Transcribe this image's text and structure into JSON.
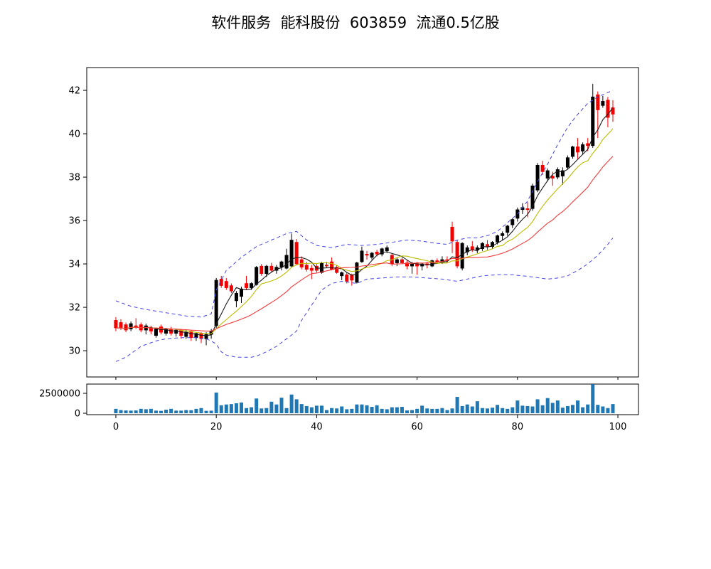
{
  "header": {
    "title": "软件服务  能科股份  603859  流通0.5亿股"
  },
  "chart_data": {
    "type": "candlestick",
    "title": "软件服务  能科股份  603859  流通0.5亿股",
    "panels": [
      "price",
      "volume"
    ],
    "price_axis": {
      "ticks": [
        30,
        32,
        34,
        36,
        38,
        40,
        42
      ],
      "ylim": [
        28.79,
        43.05
      ]
    },
    "x_axis": {
      "ticks": [
        0,
        20,
        40,
        60,
        80,
        100
      ],
      "xlim": [
        -5.8,
        104.1
      ]
    },
    "volume_axis": {
      "tick_values": [
        2500000,
        0
      ],
      "tick_labels": [
        "2500000",
        "0"
      ],
      "ylim": [
        -178000,
        3661000
      ]
    },
    "colors": {
      "up": "#000000",
      "down": "#f20000",
      "volume": "#1f77b4",
      "spine": "#000000",
      "ma_fast": "#1a1a1a",
      "ma_mid": "#bdbd00",
      "ma_slow": "#f23b3b",
      "bollinger": "#4545e6"
    },
    "candles": [
      [
        31.4,
        31.55,
        30.9,
        31.05
      ],
      [
        31.3,
        31.45,
        30.95,
        31.05
      ],
      [
        31.2,
        31.3,
        30.85,
        30.95
      ],
      [
        31.0,
        31.35,
        30.9,
        31.25
      ],
      [
        31.15,
        31.5,
        31.0,
        31.1
      ],
      [
        31.2,
        31.3,
        30.85,
        30.95
      ],
      [
        30.95,
        31.25,
        30.75,
        31.15
      ],
      [
        31.05,
        31.15,
        30.75,
        30.9
      ],
      [
        30.7,
        31.05,
        30.6,
        31.0
      ],
      [
        31.1,
        31.2,
        30.75,
        30.85
      ],
      [
        30.8,
        31.05,
        30.7,
        31.0
      ],
      [
        31.0,
        31.1,
        30.7,
        30.8
      ],
      [
        30.8,
        31.0,
        30.65,
        30.95
      ],
      [
        30.95,
        31.0,
        30.55,
        30.7
      ],
      [
        30.65,
        30.95,
        30.55,
        30.85
      ],
      [
        30.9,
        30.95,
        30.45,
        30.6
      ],
      [
        30.6,
        30.85,
        30.45,
        30.8
      ],
      [
        30.8,
        30.85,
        30.35,
        30.55
      ],
      [
        30.55,
        30.85,
        30.25,
        30.75
      ],
      [
        30.75,
        31.0,
        30.55,
        30.9
      ],
      [
        31.15,
        33.35,
        31.05,
        33.25
      ],
      [
        33.3,
        33.45,
        32.9,
        33.0
      ],
      [
        33.2,
        33.35,
        32.8,
        32.9
      ],
      [
        33.0,
        33.1,
        32.65,
        32.75
      ],
      [
        32.3,
        32.75,
        32.0,
        32.65
      ],
      [
        32.5,
        32.95,
        32.2,
        32.85
      ],
      [
        33.1,
        33.45,
        32.8,
        32.9
      ],
      [
        32.9,
        33.15,
        32.8,
        33.1
      ],
      [
        33.05,
        33.9,
        33.0,
        33.85
      ],
      [
        33.9,
        34.0,
        33.45,
        33.55
      ],
      [
        33.55,
        33.95,
        33.4,
        33.9
      ],
      [
        33.9,
        34.05,
        33.6,
        33.7
      ],
      [
        33.7,
        33.95,
        33.55,
        33.85
      ],
      [
        33.85,
        34.15,
        33.7,
        34.1
      ],
      [
        33.8,
        34.7,
        33.75,
        34.4
      ],
      [
        33.9,
        35.4,
        33.85,
        35.1
      ],
      [
        35.0,
        35.15,
        33.95,
        34.0
      ],
      [
        34.2,
        34.35,
        33.75,
        33.85
      ],
      [
        33.95,
        34.1,
        33.65,
        33.75
      ],
      [
        33.8,
        33.95,
        33.3,
        33.7
      ],
      [
        33.9,
        34.0,
        33.6,
        33.7
      ],
      [
        33.6,
        34.1,
        33.55,
        34.05
      ],
      [
        33.95,
        34.1,
        33.8,
        33.9
      ],
      [
        34.1,
        34.3,
        33.7,
        33.75
      ],
      [
        33.85,
        33.95,
        33.55,
        33.6
      ],
      [
        33.45,
        33.65,
        33.25,
        33.6
      ],
      [
        33.5,
        33.6,
        33.1,
        33.2
      ],
      [
        33.5,
        33.55,
        33.0,
        33.25
      ],
      [
        33.15,
        34.1,
        33.1,
        34.05
      ],
      [
        34.1,
        34.8,
        34.05,
        34.6
      ],
      [
        34.45,
        34.6,
        34.2,
        34.4
      ],
      [
        34.3,
        34.55,
        34.2,
        34.5
      ],
      [
        34.55,
        34.65,
        34.35,
        34.45
      ],
      [
        34.45,
        34.75,
        34.35,
        34.7
      ],
      [
        34.6,
        34.85,
        34.5,
        34.75
      ],
      [
        34.4,
        34.5,
        33.9,
        34.0
      ],
      [
        34.05,
        34.3,
        33.9,
        34.2
      ],
      [
        34.2,
        34.3,
        34.0,
        34.05
      ],
      [
        34.05,
        34.15,
        33.75,
        33.9
      ],
      [
        33.9,
        34.1,
        33.55,
        34.0
      ],
      [
        34.0,
        34.1,
        33.5,
        33.9
      ],
      [
        33.9,
        34.05,
        33.7,
        34.0
      ],
      [
        34.0,
        34.1,
        33.8,
        33.95
      ],
      [
        33.9,
        34.2,
        33.85,
        34.15
      ],
      [
        34.15,
        34.25,
        34.0,
        34.1
      ],
      [
        34.1,
        34.35,
        34.0,
        34.2
      ],
      [
        34.2,
        34.35,
        34.05,
        34.15
      ],
      [
        35.7,
        35.95,
        34.5,
        35.05
      ],
      [
        35.0,
        35.1,
        33.8,
        33.9
      ],
      [
        33.8,
        35.0,
        33.7,
        34.95
      ],
      [
        34.55,
        34.85,
        34.4,
        34.75
      ],
      [
        34.8,
        35.05,
        34.55,
        34.65
      ],
      [
        34.65,
        34.85,
        34.5,
        34.75
      ],
      [
        34.7,
        35.0,
        34.6,
        34.95
      ],
      [
        34.9,
        35.1,
        34.65,
        34.8
      ],
      [
        34.8,
        35.05,
        34.7,
        35.0
      ],
      [
        35.0,
        35.35,
        34.9,
        35.3
      ],
      [
        35.3,
        35.5,
        35.1,
        35.4
      ],
      [
        35.45,
        35.8,
        35.3,
        35.75
      ],
      [
        35.8,
        36.1,
        35.65,
        36.05
      ],
      [
        36.1,
        36.6,
        35.95,
        36.5
      ],
      [
        36.5,
        36.8,
        36.3,
        36.6
      ],
      [
        36.55,
        36.85,
        36.15,
        36.5
      ],
      [
        36.55,
        37.7,
        36.45,
        37.6
      ],
      [
        37.4,
        38.65,
        37.3,
        38.55
      ],
      [
        38.55,
        38.75,
        38.1,
        38.25
      ],
      [
        37.95,
        38.4,
        37.8,
        38.3
      ],
      [
        38.05,
        38.25,
        37.6,
        37.95
      ],
      [
        38.0,
        38.45,
        37.9,
        38.35
      ],
      [
        38.05,
        38.45,
        37.65,
        38.3
      ],
      [
        38.45,
        39.0,
        38.35,
        38.9
      ],
      [
        38.95,
        39.45,
        38.85,
        39.4
      ],
      [
        39.4,
        39.8,
        38.85,
        39.15
      ],
      [
        39.2,
        39.6,
        39.05,
        39.5
      ],
      [
        39.55,
        39.8,
        39.2,
        39.45
      ],
      [
        39.45,
        42.3,
        39.35,
        41.7
      ],
      [
        41.8,
        41.95,
        39.8,
        41.1
      ],
      [
        41.3,
        41.75,
        41.2,
        41.5
      ],
      [
        41.55,
        41.7,
        40.3,
        40.75
      ],
      [
        41.2,
        41.55,
        40.55,
        40.9
      ]
    ],
    "volumes": [
      550000,
      400000,
      350000,
      330000,
      350000,
      550000,
      500000,
      550000,
      330000,
      300000,
      450000,
      550000,
      330000,
      330000,
      400000,
      380000,
      550000,
      650000,
      300000,
      320000,
      2600000,
      1000000,
      1100000,
      1150000,
      1250000,
      1350000,
      650000,
      750000,
      1850000,
      600000,
      650000,
      1450000,
      1100000,
      1950000,
      650000,
      2350000,
      1750000,
      1150000,
      900000,
      750000,
      950000,
      950000,
      400000,
      650000,
      600000,
      850000,
      500000,
      550000,
      1100000,
      1100000,
      1000000,
      800000,
      1000000,
      550000,
      500000,
      750000,
      750000,
      800000,
      350000,
      400000,
      550000,
      950000,
      600000,
      550000,
      550000,
      650000,
      400000,
      600000,
      2050000,
      900000,
      1100000,
      850000,
      1500000,
      650000,
      600000,
      700000,
      1050000,
      650000,
      550000,
      750000,
      1600000,
      950000,
      900000,
      850000,
      1750000,
      1000000,
      1900000,
      1300000,
      1600000,
      700000,
      900000,
      1050000,
      1600000,
      750000,
      1100000,
      3650000,
      1050000,
      850000,
      650000,
      1150000
    ],
    "overlays": {
      "moving_averages": [
        {
          "name": "MA5",
          "window": 5,
          "color": "#1a1a1a"
        },
        {
          "name": "MA10",
          "window": 10,
          "color": "#bdbd00"
        },
        {
          "name": "MA20",
          "window": 20,
          "color": "#f23b3b"
        }
      ],
      "bollinger": {
        "color": "#4545e6",
        "dash": "5,4",
        "upper": [
          [
            0,
            32.3
          ],
          [
            3,
            32.05
          ],
          [
            6,
            31.9
          ],
          [
            10,
            31.75
          ],
          [
            14,
            31.6
          ],
          [
            17,
            31.55
          ],
          [
            19,
            31.7
          ],
          [
            20,
            32.8
          ],
          [
            22,
            33.7
          ],
          [
            25,
            34.3
          ],
          [
            28,
            34.8
          ],
          [
            31,
            35.1
          ],
          [
            34,
            35.4
          ],
          [
            36,
            35.5
          ],
          [
            38,
            35.1
          ],
          [
            40,
            34.85
          ],
          [
            43,
            34.75
          ],
          [
            46,
            34.9
          ],
          [
            49,
            34.85
          ],
          [
            52,
            34.9
          ],
          [
            55,
            35.0
          ],
          [
            58,
            35.1
          ],
          [
            61,
            35.05
          ],
          [
            64,
            34.95
          ],
          [
            66,
            34.9
          ],
          [
            68,
            35.1
          ],
          [
            70,
            35.2
          ],
          [
            72,
            35.2
          ],
          [
            74,
            35.3
          ],
          [
            76,
            35.5
          ],
          [
            78,
            35.9
          ],
          [
            80,
            36.3
          ],
          [
            82,
            36.9
          ],
          [
            84,
            37.8
          ],
          [
            86,
            38.6
          ],
          [
            88,
            39.5
          ],
          [
            90,
            40.3
          ],
          [
            92,
            40.9
          ],
          [
            94,
            41.4
          ],
          [
            96,
            41.7
          ],
          [
            98,
            41.9
          ],
          [
            99,
            42.0
          ]
        ],
        "lower": [
          [
            0,
            29.5
          ],
          [
            2,
            29.7
          ],
          [
            5,
            30.2
          ],
          [
            8,
            30.45
          ],
          [
            10,
            30.55
          ],
          [
            13,
            30.6
          ],
          [
            16,
            30.6
          ],
          [
            18,
            30.55
          ],
          [
            19,
            30.45
          ],
          [
            20,
            30.3
          ],
          [
            21,
            29.95
          ],
          [
            22,
            29.8
          ],
          [
            24,
            29.7
          ],
          [
            27,
            29.7
          ],
          [
            28,
            29.75
          ],
          [
            30,
            29.95
          ],
          [
            32,
            30.2
          ],
          [
            34,
            30.55
          ],
          [
            36,
            30.9
          ],
          [
            37,
            31.4
          ],
          [
            39,
            32.1
          ],
          [
            41,
            32.8
          ],
          [
            43,
            33.1
          ],
          [
            45,
            33.2
          ],
          [
            48,
            33.1
          ],
          [
            50,
            33.3
          ],
          [
            53,
            33.35
          ],
          [
            56,
            33.4
          ],
          [
            59,
            33.4
          ],
          [
            62,
            33.35
          ],
          [
            65,
            33.3
          ],
          [
            68,
            33.2
          ],
          [
            70,
            33.3
          ],
          [
            73,
            33.45
          ],
          [
            76,
            33.5
          ],
          [
            79,
            33.5
          ],
          [
            81,
            33.45
          ],
          [
            83,
            33.4
          ],
          [
            86,
            33.3
          ],
          [
            88,
            33.35
          ],
          [
            90,
            33.45
          ],
          [
            92,
            33.7
          ],
          [
            94,
            34.0
          ],
          [
            96,
            34.4
          ],
          [
            98,
            34.9
          ],
          [
            99,
            35.2
          ]
        ]
      }
    }
  }
}
